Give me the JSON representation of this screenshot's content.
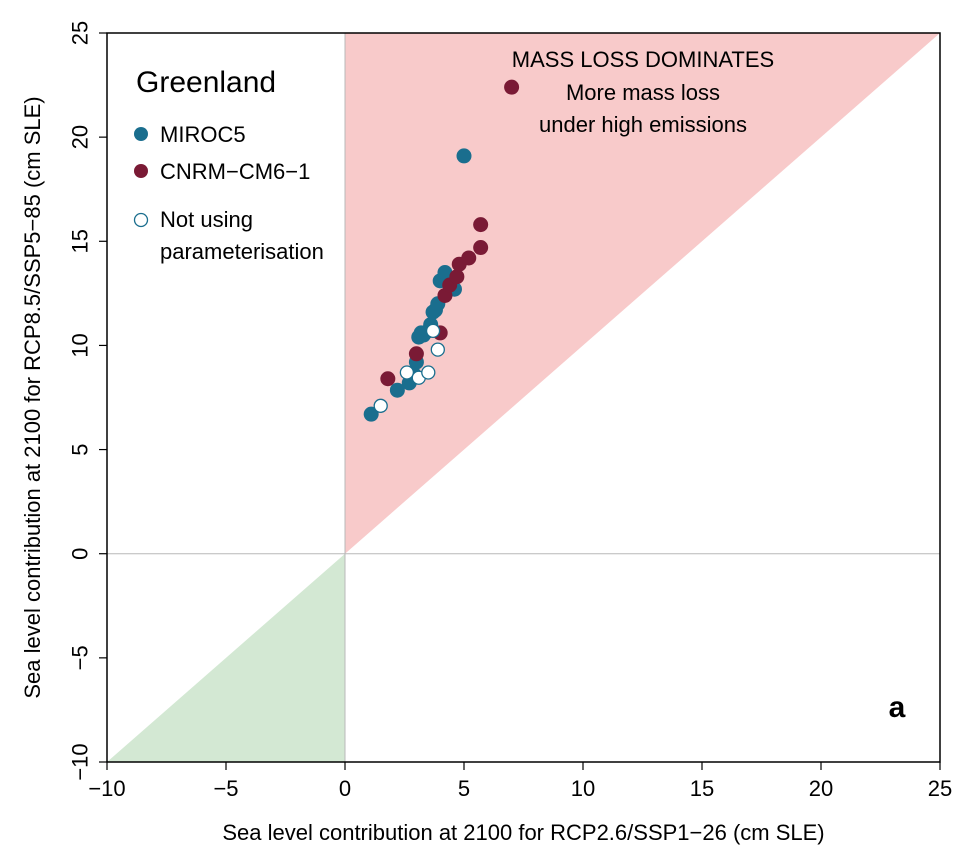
{
  "chart_data": {
    "type": "scatter",
    "xlabel": "Sea level contribution at 2100 for RCP2.6/SSP1−26 (cm SLE)",
    "ylabel": "Sea level contribution at 2100 for RCP8.5/SSP5−85 (cm SLE)",
    "xlim": [
      -10,
      25
    ],
    "ylim": [
      -10,
      25
    ],
    "x_ticks": [
      -10,
      -5,
      0,
      5,
      10,
      15,
      20,
      25
    ],
    "y_ticks": [
      -10,
      -5,
      0,
      5,
      10,
      15,
      20,
      25
    ],
    "x_tick_labels": [
      "−10",
      "−5",
      "0",
      "5",
      "10",
      "15",
      "20",
      "25"
    ],
    "y_tick_labels": [
      "−10",
      "−5",
      "0",
      "5",
      "10",
      "15",
      "20",
      "25"
    ],
    "grid": false,
    "reference_lines": [
      0
    ],
    "legend": {
      "title": "Greenland",
      "placement": "top-left",
      "entries": [
        {
          "label": "MIROC5",
          "color": "#1a6e8e",
          "marker": "filled-circle"
        },
        {
          "label": "CNRM−CM6−1",
          "color": "#7a1a35",
          "marker": "filled-circle"
        },
        {
          "label_lines": [
            "Not using",
            "parameterisation"
          ],
          "color": "#1a6e8e",
          "marker": "open-circle"
        }
      ]
    },
    "regions": [
      {
        "name": "mass-loss-dominates",
        "color": "#f8caca",
        "polygon": [
          [
            0,
            0
          ],
          [
            0,
            25
          ],
          [
            25,
            25
          ]
        ]
      },
      {
        "name": "lower-left",
        "color": "#d3e8d3",
        "polygon": [
          [
            -10,
            -10
          ],
          [
            0,
            -10
          ],
          [
            0,
            0
          ]
        ]
      }
    ],
    "annotations": {
      "headline": "MASS LOSS DOMINATES",
      "lines": [
        "More mass loss",
        "under high emissions"
      ],
      "panel_letter": "a"
    },
    "series": [
      {
        "name": "MIROC5",
        "color": "#1a6e8e",
        "points": [
          [
            1.1,
            6.7
          ],
          [
            2.2,
            7.85
          ],
          [
            2.7,
            8.2
          ],
          [
            2.9,
            8.6
          ],
          [
            3.0,
            9.2
          ],
          [
            3.1,
            10.4
          ],
          [
            3.2,
            10.6
          ],
          [
            3.3,
            10.5
          ],
          [
            3.5,
            10.7
          ],
          [
            3.6,
            11.0
          ],
          [
            3.7,
            11.6
          ],
          [
            3.8,
            11.7
          ],
          [
            3.9,
            12.0
          ],
          [
            4.0,
            13.1
          ],
          [
            4.2,
            13.5
          ],
          [
            4.6,
            12.7
          ],
          [
            5.0,
            19.1
          ]
        ]
      },
      {
        "name": "CNRM−CM6−1",
        "color": "#7a1a35",
        "points": [
          [
            1.8,
            8.4
          ],
          [
            3.0,
            9.6
          ],
          [
            4.0,
            10.6
          ],
          [
            4.2,
            12.4
          ],
          [
            4.4,
            12.9
          ],
          [
            4.7,
            13.3
          ],
          [
            4.8,
            13.9
          ],
          [
            5.2,
            14.2
          ],
          [
            5.7,
            14.7
          ],
          [
            5.7,
            15.8
          ],
          [
            7.0,
            22.4
          ]
        ]
      },
      {
        "name": "Not using parameterisation",
        "color": "#1a6e8e",
        "open": true,
        "points": [
          [
            1.5,
            7.1
          ],
          [
            2.6,
            8.7
          ],
          [
            3.1,
            8.45
          ],
          [
            3.5,
            8.7
          ],
          [
            3.7,
            10.7
          ],
          [
            3.9,
            9.8
          ]
        ]
      }
    ]
  }
}
